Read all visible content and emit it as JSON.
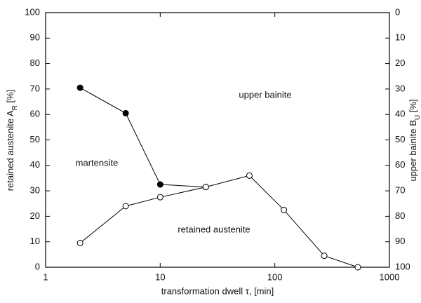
{
  "chart_data": {
    "type": "line",
    "x_label": "transformation dwell τ, [min]",
    "y_label": {
      "text": "retained austenite A",
      "sub": "R",
      "unit": " [%]"
    },
    "y2_label": {
      "text": "upper bainite B",
      "sub": "U",
      "unit": " [%]"
    },
    "annotations": [
      "upper bainite",
      "martensite",
      "retained austenite"
    ],
    "log_x": true,
    "xlim": [
      1,
      1000
    ],
    "xticks": [
      1,
      10,
      100,
      1000
    ],
    "ylim": [
      0,
      100
    ],
    "yticks": [
      0,
      10,
      20,
      30,
      40,
      50,
      60,
      70,
      80,
      90,
      100
    ],
    "y2lim": [
      100,
      0
    ],
    "y2ticks": [
      0,
      10,
      20,
      30,
      40,
      50,
      60,
      70,
      80,
      90,
      100
    ],
    "series": [
      {
        "x": [
          2,
          5,
          10,
          25
        ],
        "values": [
          70.5,
          60.5,
          32.5,
          31.5
        ],
        "color": "#000000",
        "marker_fill": "#000000"
      },
      {
        "x": [
          2,
          5,
          10,
          25,
          60,
          120,
          270,
          530
        ],
        "values": [
          9.5,
          24,
          27.5,
          31.5,
          36,
          22.5,
          4.5,
          0
        ],
        "color": "#000000",
        "marker_fill": "#ffffff"
      }
    ]
  }
}
